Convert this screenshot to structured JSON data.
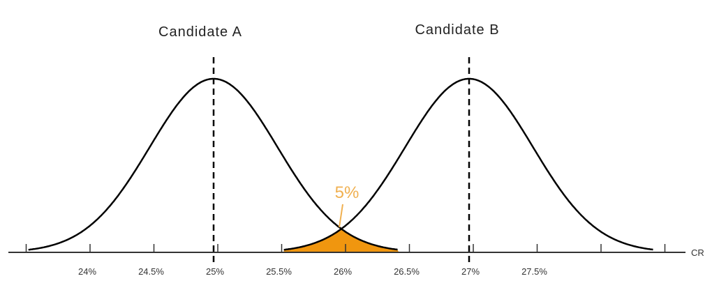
{
  "chart_data": {
    "type": "line",
    "title": "",
    "xlabel": "CR",
    "ylabel": "",
    "xlim": [
      23.4,
      28.6
    ],
    "x_ticks": [
      23.5,
      24,
      24.5,
      25,
      25.5,
      26,
      26.5,
      27,
      27.5,
      28,
      28.5
    ],
    "x_tick_labels": [
      {
        "value": 24,
        "label": "24%"
      },
      {
        "value": 24.5,
        "label": "24.5%"
      },
      {
        "value": 25,
        "label": "25%"
      },
      {
        "value": 25.5,
        "label": "25.5%"
      },
      {
        "value": 26,
        "label": "26%"
      },
      {
        "value": 26.5,
        "label": "26.5%"
      },
      {
        "value": 27,
        "label": "27%"
      },
      {
        "value": 27.5,
        "label": "27.5%"
      }
    ],
    "grid": false,
    "series": [
      {
        "name": "Candidate A",
        "distribution": "normal",
        "mean": 25,
        "sd": 0.5
      },
      {
        "name": "Candidate B",
        "distribution": "normal",
        "mean": 27,
        "sd": 0.5
      }
    ],
    "overlap": {
      "label": "5%",
      "from": 25.55,
      "to": 26.45,
      "color": "#f0960f",
      "label_color": "#f0b050"
    },
    "colors": {
      "curve": "#000000",
      "axis": "#333333"
    }
  }
}
